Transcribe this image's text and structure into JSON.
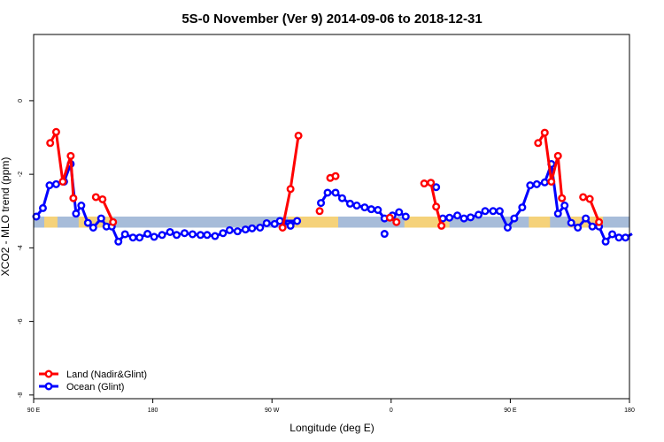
{
  "chart_data": {
    "type": "line",
    "title": "5S-0 November (Ver 9)   2014-09-06 to 2018-12-31",
    "xlabel": "Longitude (deg E)",
    "ylabel": "XCO2 - MLO trend (ppm)",
    "xlim": [
      90,
      540
    ],
    "ylim": [
      -8.1,
      1.8
    ],
    "x_ticks": [
      {
        "value": 90,
        "label": "90 E"
      },
      {
        "value": 180,
        "label": "180"
      },
      {
        "value": 270,
        "label": "90 W"
      },
      {
        "value": 360,
        "label": "0"
      },
      {
        "value": 450,
        "label": "90 E"
      },
      {
        "value": 540,
        "label": "180"
      }
    ],
    "y_ticks": [
      {
        "value": 0,
        "label": "0"
      },
      {
        "value": -2,
        "label": "-2"
      },
      {
        "value": -4,
        "label": "-4"
      },
      {
        "value": -6,
        "label": "-6"
      },
      {
        "value": -8,
        "label": "-8"
      }
    ],
    "grid": false,
    "legend_position": "bottom-left",
    "band": {
      "y_min": -3.45,
      "y_max": -3.15,
      "ocean_color": "#a7bcd9",
      "land_color": "#f5d27a"
    },
    "land_band_segments": [
      [
        98,
        108
      ],
      [
        124,
        150
      ],
      [
        282,
        320
      ],
      [
        370,
        404
      ],
      [
        464,
        480
      ],
      [
        494,
        520
      ]
    ],
    "series": [
      {
        "name": "Land (Nadir&Glint)",
        "color": "#ff0000",
        "segments": [
          [
            [
              102.5,
              -1.15
            ],
            [
              107,
              -0.85
            ],
            [
              112,
              -2.2
            ],
            [
              118,
              -1.5
            ],
            [
              120,
              -2.65
            ]
          ],
          [
            [
              137,
              -2.62
            ],
            [
              142,
              -2.68
            ],
            [
              150,
              -3.3
            ]
          ],
          [
            [
              278,
              -3.45
            ],
            [
              284,
              -2.4
            ],
            [
              290,
              -0.95
            ]
          ],
          [
            [
              306,
              -3.0
            ]
          ],
          [
            [
              314,
              -2.1
            ],
            [
              318,
              -2.05
            ]
          ],
          [
            [
              359,
              -3.18
            ],
            [
              364,
              -3.3
            ]
          ],
          [
            [
              385,
              -2.25
            ],
            [
              390,
              -2.23
            ],
            [
              394,
              -2.88
            ],
            [
              398,
              -3.4
            ]
          ],
          [
            [
              471,
              -1.15
            ],
            [
              476,
              -0.87
            ],
            [
              481,
              -2.2
            ],
            [
              486,
              -1.5
            ],
            [
              489,
              -2.65
            ]
          ],
          [
            [
              505,
              -2.62
            ],
            [
              510,
              -2.67
            ],
            [
              517,
              -3.3
            ]
          ]
        ]
      },
      {
        "name": "Ocean (Glint)",
        "color": "#0000ff",
        "segments": [
          [
            [
              92,
              -3.15
            ],
            [
              97,
              -2.92
            ],
            [
              102,
              -2.3
            ],
            [
              107,
              -2.27
            ],
            [
              113,
              -2.2
            ],
            [
              118,
              -1.72
            ],
            [
              122,
              -3.07
            ],
            [
              126,
              -2.85
            ],
            [
              131,
              -3.32
            ],
            [
              135,
              -3.45
            ],
            [
              141,
              -3.2
            ],
            [
              145,
              -3.42
            ],
            [
              149,
              -3.42
            ],
            [
              154,
              -3.83
            ],
            [
              159,
              -3.63
            ],
            [
              165,
              -3.72
            ],
            [
              170,
              -3.72
            ],
            [
              176,
              -3.62
            ],
            [
              181,
              -3.7
            ],
            [
              187,
              -3.65
            ],
            [
              193,
              -3.57
            ],
            [
              198,
              -3.65
            ],
            [
              204,
              -3.6
            ],
            [
              210,
              -3.63
            ],
            [
              216,
              -3.65
            ],
            [
              221,
              -3.65
            ],
            [
              227,
              -3.68
            ],
            [
              233,
              -3.6
            ],
            [
              238,
              -3.52
            ],
            [
              244,
              -3.55
            ],
            [
              250,
              -3.5
            ],
            [
              255,
              -3.47
            ],
            [
              261,
              -3.45
            ],
            [
              266,
              -3.33
            ],
            [
              272,
              -3.35
            ],
            [
              278,
              -3.3
            ],
            [
              284,
              -3.4
            ],
            [
              289,
              -3.27
            ],
            [
              276,
              -3.27
            ]
          ],
          [
            [
              307,
              -2.78
            ],
            [
              312,
              -2.5
            ],
            [
              318,
              -2.5
            ],
            [
              323,
              -2.65
            ],
            [
              329,
              -2.8
            ],
            [
              334,
              -2.85
            ],
            [
              340,
              -2.9
            ],
            [
              345,
              -2.95
            ],
            [
              350,
              -2.97
            ],
            [
              355,
              -3.2
            ],
            [
              361,
              -3.12
            ],
            [
              366,
              -3.03
            ],
            [
              371,
              -3.15
            ]
          ],
          [
            [
              355,
              -3.62
            ]
          ],
          [
            [
              394,
              -2.35
            ]
          ],
          [
            [
              399,
              -3.2
            ],
            [
              404,
              -3.18
            ],
            [
              410,
              -3.12
            ],
            [
              415,
              -3.2
            ],
            [
              420,
              -3.17
            ],
            [
              426,
              -3.1
            ],
            [
              431,
              -3.0
            ],
            [
              437,
              -3.0
            ],
            [
              442,
              -3.0
            ],
            [
              448,
              -3.45
            ],
            [
              453,
              -3.2
            ],
            [
              459,
              -2.9
            ],
            [
              465,
              -2.3
            ],
            [
              470,
              -2.27
            ],
            [
              476,
              -2.22
            ],
            [
              481,
              -1.72
            ],
            [
              486,
              -3.07
            ],
            [
              491,
              -2.85
            ],
            [
              496,
              -3.32
            ],
            [
              501,
              -3.45
            ],
            [
              507,
              -3.2
            ],
            [
              512,
              -3.42
            ],
            [
              517,
              -3.42
            ],
            [
              522,
              -3.83
            ],
            [
              527,
              -3.63
            ],
            [
              532,
              -3.72
            ],
            [
              537,
              -3.72
            ],
            [
              542,
              -3.62
            ]
          ]
        ]
      }
    ]
  }
}
